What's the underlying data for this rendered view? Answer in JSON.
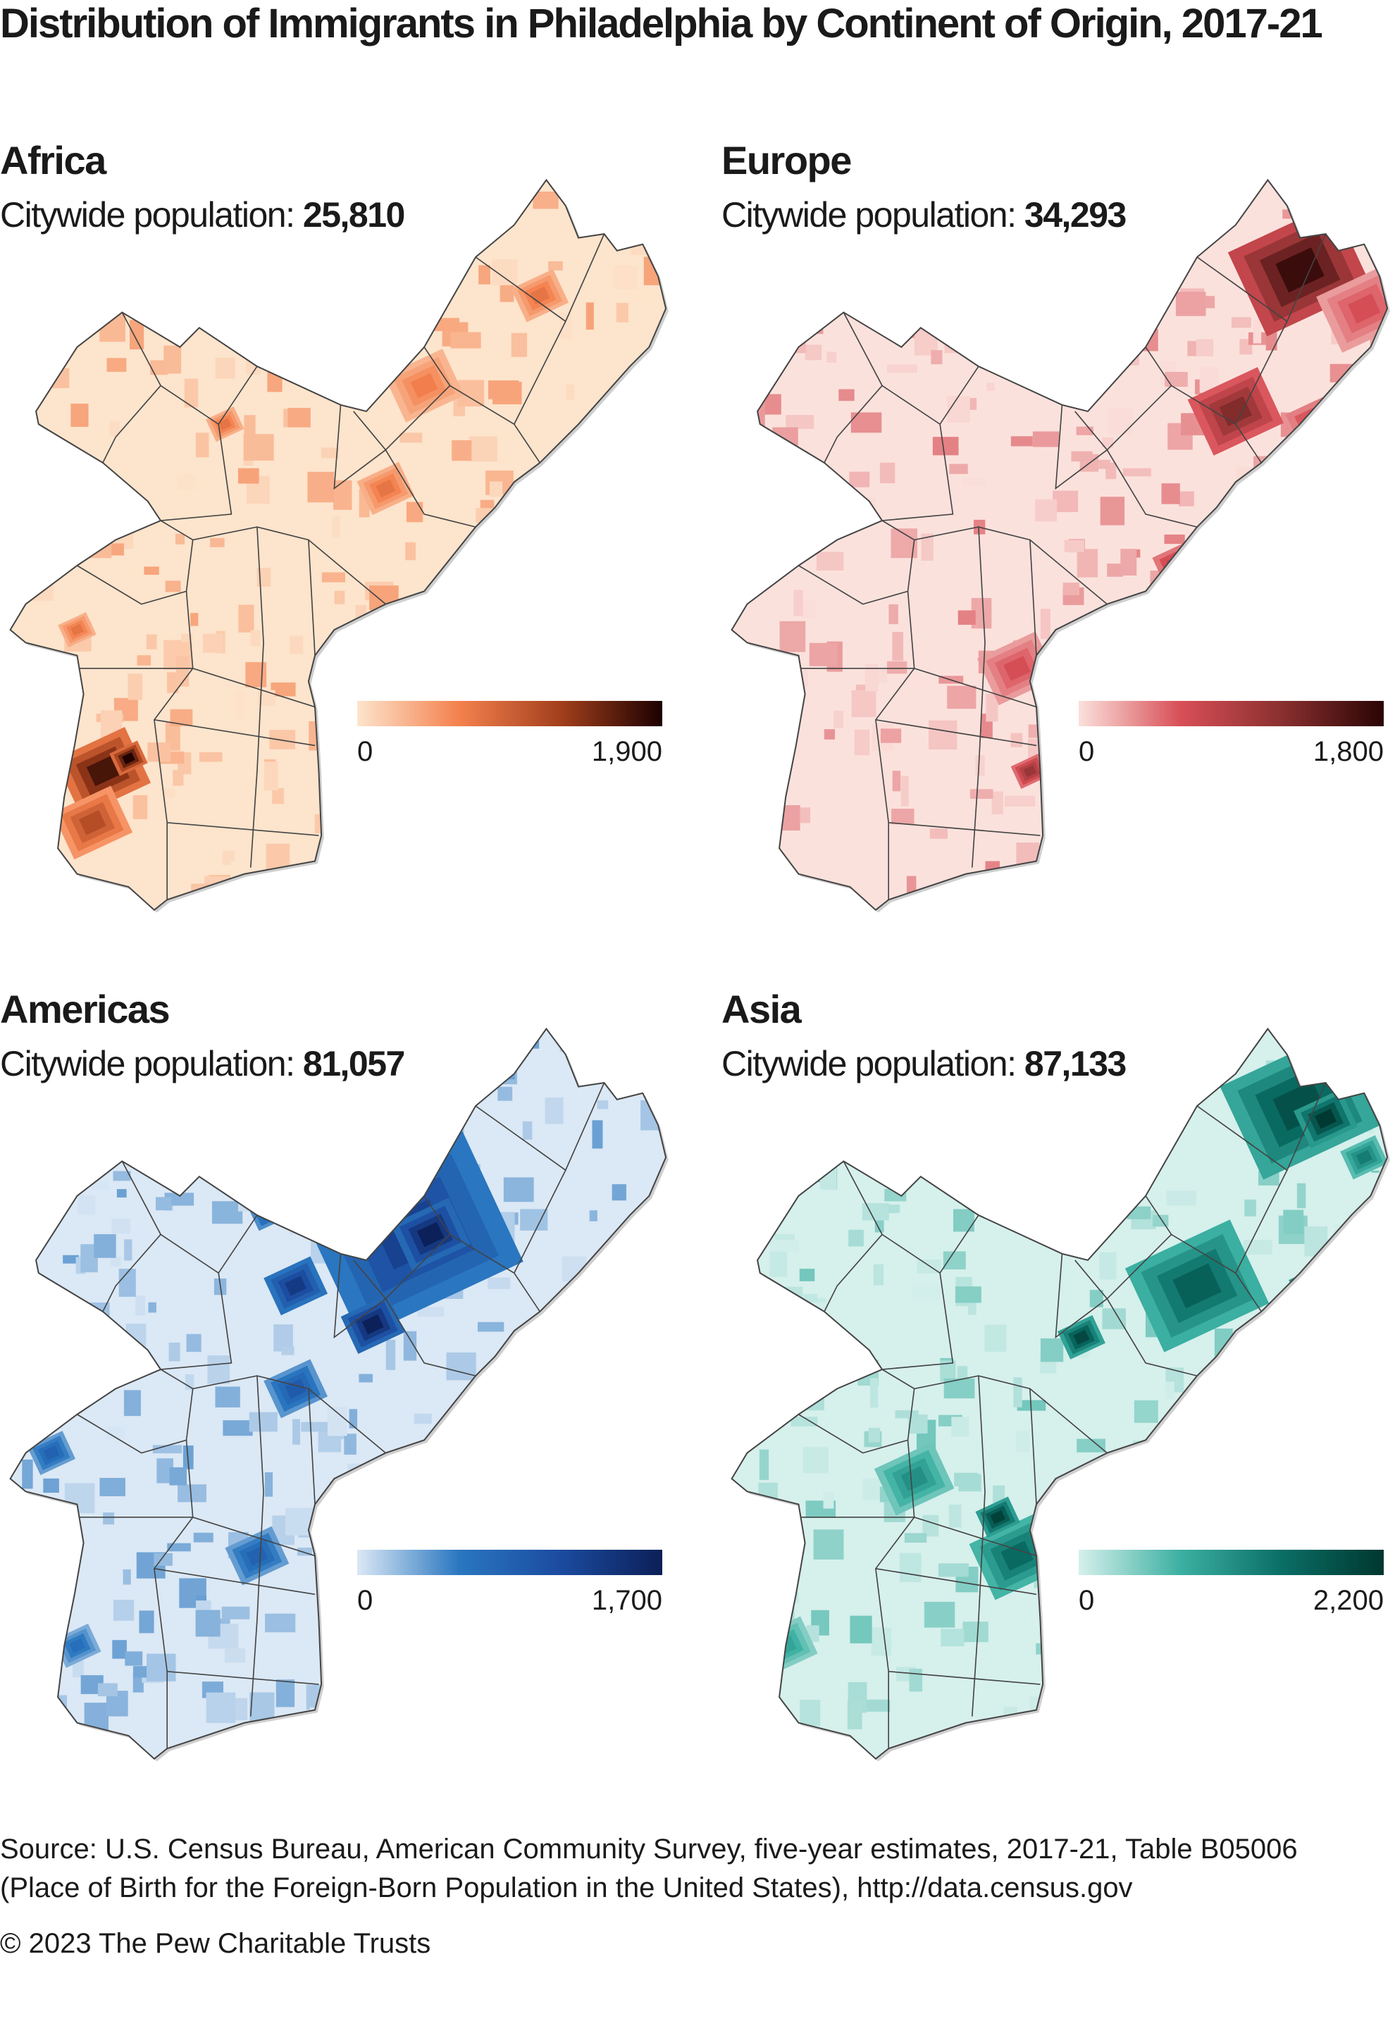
{
  "title": "Distribution of Immigrants in Philadelphia by Continent of Origin, 2017-21",
  "panels": [
    {
      "name": "Africa",
      "population_label": "Citywide population:",
      "population": "25,810",
      "legend_min": "0",
      "legend_max": "1,900",
      "colors": [
        "#fde4cc",
        "#f4814e",
        "#a33f1c",
        "#1c0000"
      ]
    },
    {
      "name": "Europe",
      "population_label": "Citywide population:",
      "population": "34,293",
      "legend_min": "0",
      "legend_max": "1,800",
      "colors": [
        "#fbe1dc",
        "#d84f57",
        "#8a2f2f",
        "#2a0404"
      ]
    },
    {
      "name": "Americas",
      "population_label": "Citywide population:",
      "population": "81,057",
      "legend_min": "0",
      "legend_max": "1,700",
      "colors": [
        "#dbe8f5",
        "#2a77c0",
        "#1b4b9f",
        "#0c1f58"
      ]
    },
    {
      "name": "Asia",
      "population_label": "Citywide population:",
      "population": "87,133",
      "legend_min": "0",
      "legend_max": "2,200",
      "colors": [
        "#d6f0ec",
        "#3cb0a2",
        "#0a6e66",
        "#00372f"
      ]
    }
  ],
  "source": "Source: U.S. Census Bureau, American Community Survey, five-year estimates, 2017-21, Table B05006 (Place of Birth for the Foreign-Born Population in the United States), http://data.census.gov",
  "copyright": "© 2023 The Pew Charitable Trusts"
}
